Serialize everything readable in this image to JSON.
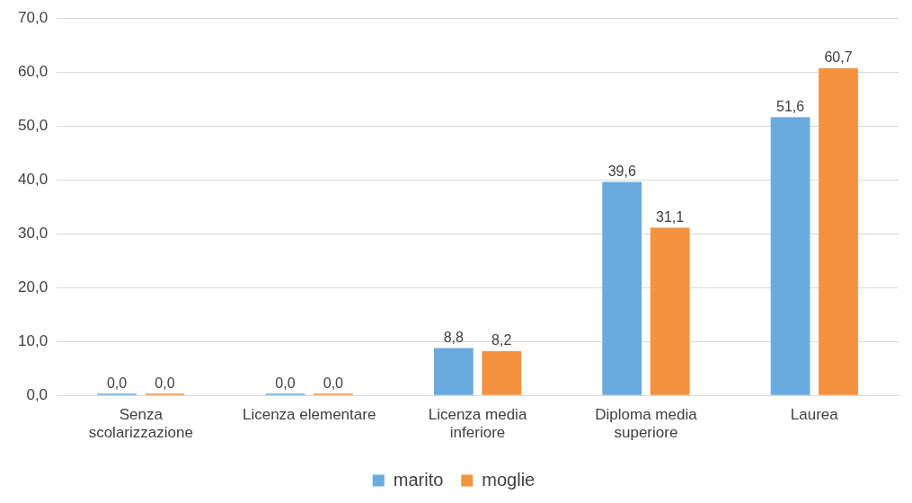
{
  "chart_data": {
    "type": "bar",
    "categories": [
      "Senza scolarizzazione",
      "Licenza elementare",
      "Licenza media inferiore",
      "Diploma media superiore",
      "Laurea"
    ],
    "series": [
      {
        "name": "marito",
        "color": "#6aaadf",
        "values": [
          0.0,
          0.0,
          8.8,
          39.6,
          51.6
        ],
        "value_labels": [
          "0,0",
          "0,0",
          "8,8",
          "39,6",
          "51,6"
        ]
      },
      {
        "name": "moglie",
        "color": "#f4923f",
        "values": [
          0.0,
          0.0,
          8.2,
          31.1,
          60.7
        ],
        "value_labels": [
          "0,0",
          "0,0",
          "8,2",
          "31,1",
          "60,7"
        ]
      }
    ],
    "ylim": [
      0,
      70
    ],
    "yticks": [
      {
        "value": 0,
        "label": "0,0"
      },
      {
        "value": 10,
        "label": "10,0"
      },
      {
        "value": 20,
        "label": "20,0"
      },
      {
        "value": 30,
        "label": "30,0"
      },
      {
        "value": 40,
        "label": "40,0"
      },
      {
        "value": 50,
        "label": "50,0"
      },
      {
        "value": 60,
        "label": "60,0"
      },
      {
        "value": 70,
        "label": "70,0"
      }
    ],
    "grid": "y",
    "legend": "bottom"
  }
}
